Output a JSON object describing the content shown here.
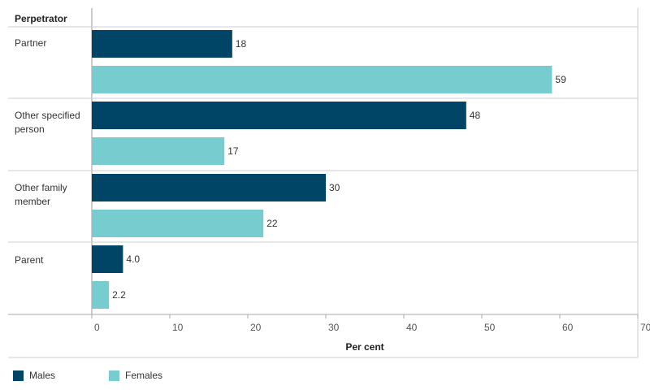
{
  "chart_data": {
    "type": "bar",
    "orientation": "horizontal",
    "row_header": "Perpetrator",
    "categories": [
      "Partner",
      "Other specified person",
      "Other family member",
      "Parent"
    ],
    "series": [
      {
        "name": "Males",
        "color": "#004466",
        "values": [
          18,
          48,
          30,
          4.0
        ],
        "labels": [
          "18",
          "48",
          "30",
          "4.0"
        ]
      },
      {
        "name": "Females",
        "color": "#77CCD0",
        "values": [
          59,
          17,
          22,
          2.2
        ],
        "labels": [
          "59",
          "17",
          "22",
          "2.2"
        ]
      }
    ],
    "xlabel": "Per cent",
    "xlim": [
      0,
      70
    ],
    "xticks": [
      "0",
      "10",
      "20",
      "30",
      "40",
      "50",
      "60",
      "70"
    ],
    "legend_position": "bottom-left"
  }
}
